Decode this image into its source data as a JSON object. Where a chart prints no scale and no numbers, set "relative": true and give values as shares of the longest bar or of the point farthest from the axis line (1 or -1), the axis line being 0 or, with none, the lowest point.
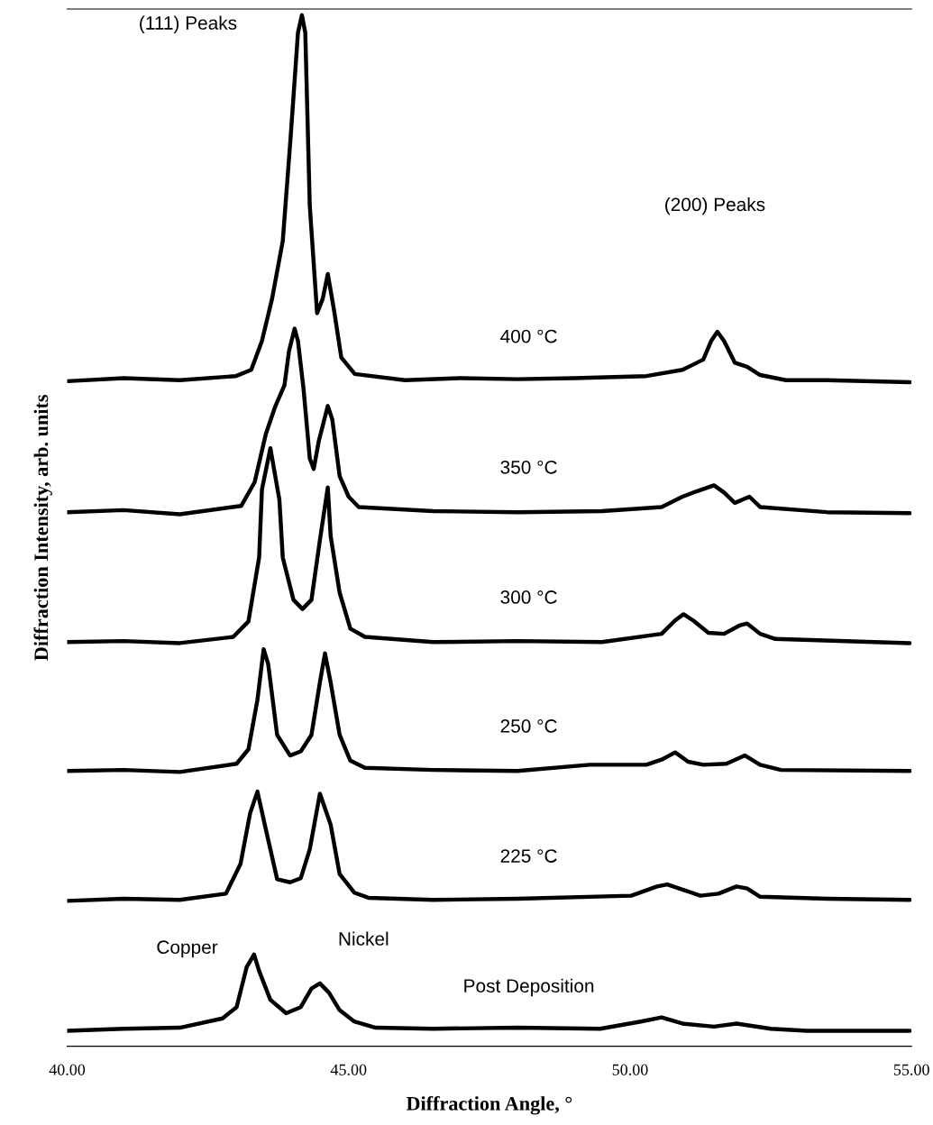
{
  "chart_data": {
    "type": "line",
    "relative": true,
    "xlabel": "Diffraction Angle, °",
    "ylabel": "Diffraction Intensity, arb. units",
    "xlim": [
      40,
      55
    ],
    "xticks": [
      {
        "value": 40,
        "label": "40.00"
      },
      {
        "value": 45,
        "label": "45.00"
      },
      {
        "value": 50,
        "label": "50.00"
      },
      {
        "value": 55,
        "label": "55.00"
      }
    ],
    "grid": false,
    "legend": false,
    "marker": "none",
    "line_style": "solid",
    "annotations": [
      "(111) Peaks",
      "(200) Peaks",
      "Copper",
      "Nickel"
    ],
    "series": [
      {
        "name": "400 °C",
        "color": "#000000",
        "x": [
          40.0,
          41.0,
          42.0,
          43.0,
          43.27,
          43.46,
          43.64,
          43.83,
          43.97,
          44.1,
          44.17,
          44.23,
          44.31,
          44.44,
          44.54,
          44.63,
          44.74,
          44.87,
          45.11,
          46.0,
          47.0,
          48.0,
          49.0,
          50.29,
          50.93,
          51.3,
          51.44,
          51.55,
          51.67,
          51.86,
          52.08,
          52.31,
          52.77,
          53.5,
          54.97
        ],
        "values": [
          0.645,
          0.648,
          0.646,
          0.65,
          0.656,
          0.684,
          0.725,
          0.781,
          0.882,
          0.983,
          1.0,
          0.983,
          0.815,
          0.711,
          0.725,
          0.749,
          0.714,
          0.668,
          0.652,
          0.646,
          0.648,
          0.647,
          0.648,
          0.65,
          0.656,
          0.666,
          0.684,
          0.693,
          0.684,
          0.663,
          0.659,
          0.651,
          0.646,
          0.646,
          0.644
        ]
      },
      {
        "name": "350 °C",
        "color": "#000000",
        "x": [
          40.0,
          41.0,
          42.0,
          43.09,
          43.33,
          43.53,
          43.7,
          43.86,
          43.94,
          44.04,
          44.1,
          44.2,
          44.31,
          44.38,
          44.47,
          44.63,
          44.71,
          44.84,
          45.0,
          45.18,
          46.5,
          48.0,
          49.5,
          50.56,
          50.93,
          51.17,
          51.49,
          51.67,
          51.86,
          52.12,
          52.31,
          53.5,
          54.97
        ],
        "values": [
          0.518,
          0.52,
          0.516,
          0.524,
          0.547,
          0.594,
          0.621,
          0.641,
          0.674,
          0.696,
          0.684,
          0.637,
          0.57,
          0.56,
          0.587,
          0.621,
          0.608,
          0.553,
          0.533,
          0.523,
          0.519,
          0.518,
          0.519,
          0.523,
          0.533,
          0.538,
          0.544,
          0.537,
          0.527,
          0.533,
          0.523,
          0.518,
          0.517
        ]
      },
      {
        "name": "300 °C",
        "color": "#000000",
        "x": [
          40.0,
          41.0,
          42.0,
          42.95,
          43.22,
          43.41,
          43.46,
          43.61,
          43.77,
          43.83,
          44.02,
          44.18,
          44.34,
          44.49,
          44.63,
          44.68,
          44.84,
          45.03,
          45.29,
          46.5,
          48.0,
          49.5,
          50.56,
          50.8,
          50.95,
          51.12,
          51.39,
          51.67,
          51.94,
          52.08,
          52.31,
          52.58,
          54.97
        ],
        "values": [
          0.392,
          0.393,
          0.391,
          0.397,
          0.412,
          0.474,
          0.54,
          0.58,
          0.53,
          0.474,
          0.433,
          0.424,
          0.433,
          0.491,
          0.542,
          0.495,
          0.44,
          0.405,
          0.397,
          0.392,
          0.393,
          0.392,
          0.4,
          0.413,
          0.419,
          0.413,
          0.401,
          0.4,
          0.408,
          0.41,
          0.4,
          0.395,
          0.391
        ]
      },
      {
        "name": "250 °C",
        "color": "#000000",
        "x": [
          40.0,
          41.0,
          42.0,
          43.01,
          43.22,
          43.38,
          43.49,
          43.57,
          43.73,
          43.96,
          44.15,
          44.34,
          44.49,
          44.58,
          44.68,
          44.84,
          45.03,
          45.29,
          46.5,
          48.0,
          49.28,
          50.29,
          50.56,
          50.8,
          51.03,
          51.3,
          51.71,
          52.04,
          52.31,
          52.68,
          54.97
        ],
        "values": [
          0.267,
          0.268,
          0.266,
          0.274,
          0.288,
          0.336,
          0.385,
          0.371,
          0.302,
          0.282,
          0.286,
          0.302,
          0.353,
          0.381,
          0.353,
          0.302,
          0.277,
          0.27,
          0.268,
          0.267,
          0.273,
          0.273,
          0.278,
          0.285,
          0.276,
          0.273,
          0.274,
          0.282,
          0.273,
          0.268,
          0.267
        ]
      },
      {
        "name": "225 °C",
        "color": "#000000",
        "x": [
          40.0,
          41.0,
          42.0,
          42.82,
          43.08,
          43.25,
          43.38,
          43.51,
          43.73,
          43.96,
          44.15,
          44.31,
          44.49,
          44.68,
          44.84,
          45.1,
          45.35,
          46.5,
          48.0,
          50.02,
          50.48,
          50.66,
          50.93,
          51.25,
          51.57,
          51.89,
          52.08,
          52.31,
          53.5,
          54.97
        ],
        "values": [
          0.141,
          0.143,
          0.142,
          0.148,
          0.177,
          0.226,
          0.247,
          0.215,
          0.162,
          0.159,
          0.163,
          0.191,
          0.245,
          0.215,
          0.167,
          0.149,
          0.144,
          0.142,
          0.143,
          0.146,
          0.155,
          0.157,
          0.152,
          0.146,
          0.148,
          0.155,
          0.153,
          0.145,
          0.143,
          0.142
        ]
      },
      {
        "name": "Post Deposition",
        "color": "#000000",
        "x": [
          40.0,
          41.0,
          42.0,
          42.76,
          43.01,
          43.19,
          43.32,
          43.41,
          43.61,
          43.89,
          44.15,
          44.34,
          44.49,
          44.65,
          44.84,
          45.1,
          45.48,
          46.5,
          48.0,
          49.47,
          50.19,
          50.56,
          50.93,
          51.49,
          51.89,
          52.5,
          53.14,
          54.97
        ],
        "values": [
          0.015,
          0.017,
          0.018,
          0.027,
          0.038,
          0.077,
          0.089,
          0.073,
          0.045,
          0.032,
          0.038,
          0.056,
          0.061,
          0.052,
          0.035,
          0.024,
          0.018,
          0.017,
          0.018,
          0.017,
          0.024,
          0.028,
          0.022,
          0.019,
          0.022,
          0.017,
          0.015,
          0.015
        ]
      }
    ]
  }
}
